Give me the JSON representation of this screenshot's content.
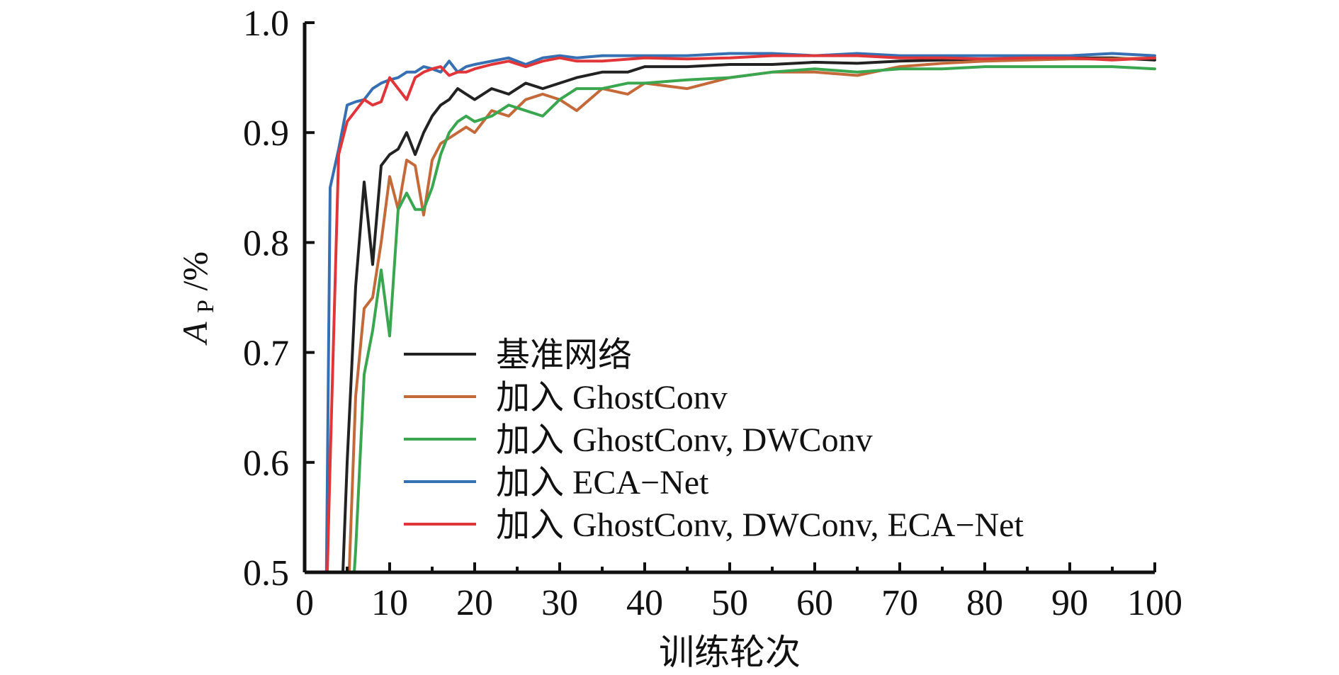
{
  "chart_data": {
    "type": "line",
    "title": "",
    "xlabel": "训练轮次",
    "ylabel_main": "A",
    "ylabel_sub": "P",
    "ylabel_unit": "/%",
    "xlim": [
      0,
      100
    ],
    "ylim": [
      0.5,
      1.0
    ],
    "xticks": [
      0,
      10,
      20,
      30,
      40,
      50,
      60,
      70,
      80,
      90,
      100
    ],
    "xtick_labels": [
      "0",
      "10",
      "20",
      "30",
      "40",
      "50",
      "60",
      "70",
      "80",
      "90",
      "100"
    ],
    "yticks": [
      0.5,
      0.6,
      0.7,
      0.8,
      0.9,
      1.0
    ],
    "ytick_labels": [
      "0.5",
      "0.6",
      "0.7",
      "0.8",
      "0.9",
      "1.0"
    ],
    "grid": false,
    "legend_position": "center-right",
    "series": [
      {
        "name": "基准网络",
        "color": "#222222",
        "x": [
          4,
          5,
          6,
          7,
          8,
          9,
          10,
          11,
          12,
          13,
          14,
          15,
          16,
          17,
          18,
          19,
          20,
          22,
          24,
          26,
          28,
          30,
          32,
          35,
          38,
          40,
          45,
          50,
          55,
          60,
          65,
          70,
          75,
          80,
          85,
          90,
          95,
          100
        ],
        "y": [
          0.4,
          0.6,
          0.76,
          0.855,
          0.78,
          0.87,
          0.88,
          0.885,
          0.9,
          0.88,
          0.9,
          0.915,
          0.925,
          0.93,
          0.94,
          0.935,
          0.93,
          0.94,
          0.935,
          0.945,
          0.94,
          0.945,
          0.95,
          0.955,
          0.955,
          0.96,
          0.96,
          0.962,
          0.962,
          0.964,
          0.963,
          0.965,
          0.966,
          0.967,
          0.967,
          0.968,
          0.968,
          0.966
        ]
      },
      {
        "name": "加入 GhostConv",
        "color": "#c46a3a",
        "x": [
          5,
          6,
          7,
          8,
          9,
          10,
          11,
          12,
          13,
          14,
          15,
          16,
          17,
          18,
          19,
          20,
          22,
          24,
          26,
          28,
          30,
          32,
          35,
          38,
          40,
          45,
          50,
          55,
          60,
          65,
          70,
          75,
          80,
          85,
          90,
          95,
          100
        ],
        "y": [
          0.45,
          0.66,
          0.74,
          0.75,
          0.8,
          0.86,
          0.83,
          0.875,
          0.87,
          0.825,
          0.875,
          0.89,
          0.895,
          0.9,
          0.905,
          0.9,
          0.92,
          0.915,
          0.93,
          0.935,
          0.93,
          0.92,
          0.94,
          0.935,
          0.945,
          0.94,
          0.95,
          0.955,
          0.955,
          0.952,
          0.96,
          0.963,
          0.965,
          0.966,
          0.967,
          0.967,
          0.968
        ]
      },
      {
        "name": "加入 GhostConv, DWConv",
        "color": "#3aa650",
        "x": [
          5,
          6,
          7,
          8,
          9,
          10,
          11,
          12,
          13,
          14,
          15,
          16,
          17,
          18,
          19,
          20,
          22,
          24,
          26,
          28,
          30,
          32,
          35,
          38,
          40,
          45,
          50,
          55,
          60,
          65,
          70,
          75,
          80,
          85,
          90,
          95,
          100
        ],
        "y": [
          0.4,
          0.52,
          0.68,
          0.72,
          0.775,
          0.715,
          0.83,
          0.845,
          0.83,
          0.83,
          0.85,
          0.88,
          0.9,
          0.91,
          0.915,
          0.91,
          0.915,
          0.925,
          0.92,
          0.915,
          0.93,
          0.94,
          0.94,
          0.945,
          0.945,
          0.948,
          0.95,
          0.955,
          0.958,
          0.955,
          0.958,
          0.958,
          0.96,
          0.96,
          0.96,
          0.96,
          0.958
        ]
      },
      {
        "name": "加入 ECA−Net",
        "color": "#3670b2",
        "x": [
          2.5,
          3,
          4,
          5,
          6,
          7,
          8,
          9,
          10,
          11,
          12,
          13,
          14,
          15,
          16,
          17,
          18,
          19,
          20,
          22,
          24,
          26,
          28,
          30,
          32,
          35,
          40,
          45,
          50,
          55,
          60,
          65,
          70,
          75,
          80,
          85,
          90,
          95,
          100
        ],
        "y": [
          0.45,
          0.85,
          0.885,
          0.925,
          0.928,
          0.93,
          0.94,
          0.945,
          0.948,
          0.95,
          0.955,
          0.955,
          0.96,
          0.958,
          0.955,
          0.965,
          0.955,
          0.96,
          0.962,
          0.965,
          0.968,
          0.962,
          0.968,
          0.97,
          0.968,
          0.97,
          0.97,
          0.97,
          0.972,
          0.972,
          0.97,
          0.972,
          0.97,
          0.97,
          0.97,
          0.97,
          0.97,
          0.972,
          0.97
        ]
      },
      {
        "name": "加入 GhostConv, DWConv, ECA−Net",
        "color": "#e0363a",
        "x": [
          2.5,
          3,
          4,
          5,
          6,
          7,
          8,
          9,
          10,
          11,
          12,
          13,
          14,
          15,
          16,
          17,
          18,
          19,
          20,
          22,
          24,
          26,
          28,
          30,
          32,
          35,
          40,
          45,
          50,
          55,
          60,
          65,
          70,
          75,
          80,
          85,
          90,
          95,
          100
        ],
        "y": [
          0.45,
          0.6,
          0.88,
          0.91,
          0.92,
          0.93,
          0.925,
          0.928,
          0.95,
          0.94,
          0.93,
          0.95,
          0.955,
          0.958,
          0.96,
          0.952,
          0.955,
          0.955,
          0.958,
          0.962,
          0.965,
          0.96,
          0.965,
          0.968,
          0.965,
          0.965,
          0.968,
          0.967,
          0.968,
          0.97,
          0.97,
          0.97,
          0.968,
          0.968,
          0.967,
          0.968,
          0.968,
          0.966,
          0.968
        ]
      }
    ]
  }
}
